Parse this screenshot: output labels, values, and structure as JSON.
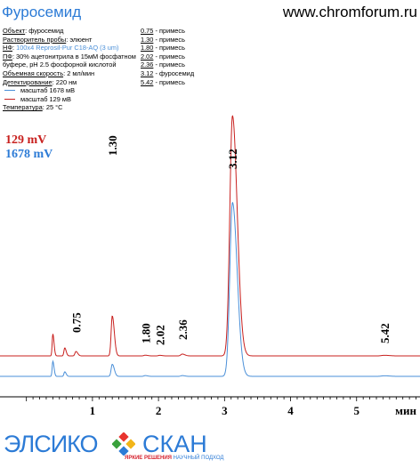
{
  "header": {
    "title": "Фуросемид",
    "site": "www.chromforum.ru"
  },
  "conditions": [
    {
      "key": "Объект",
      "value": "фуросемид",
      "blue": false
    },
    {
      "key": "Растворитель пробы",
      "value": "элюент",
      "blue": false
    },
    {
      "key": "НФ",
      "value": "100х4 Reprosil-Pur C18-AQ  (3 um)",
      "blue": true
    },
    {
      "key": "ПФ",
      "value": "30% ацетонитрила в 15мМ фосфатном",
      "blue": false
    },
    {
      "key": "",
      "value": "буфере, pH 2.5 фосфорной кислотой",
      "blue": false
    },
    {
      "key": "Объемная скорость",
      "value": "2 мл/мин",
      "blue": false
    },
    {
      "key": "Детектирование",
      "value": "220 нм",
      "blue": false
    }
  ],
  "legend": [
    {
      "label": "масштаб 1678 мВ",
      "color": "#4a8fd8"
    },
    {
      "label": "масштаб 129 мВ",
      "color": "#c8201e"
    }
  ],
  "temperature": {
    "key": "Температура",
    "value": "25 °C"
  },
  "peak_table": [
    {
      "time": "0.75",
      "name": "примесь"
    },
    {
      "time": "1.30",
      "name": "примесь"
    },
    {
      "time": "1.80",
      "name": "примесь"
    },
    {
      "time": "2.02",
      "name": "примесь"
    },
    {
      "time": "2.36",
      "name": "примесь"
    },
    {
      "time": "3.12",
      "name": "фуросемид"
    },
    {
      "time": "5.42",
      "name": "примесь"
    }
  ],
  "scales": {
    "red": "129 mV",
    "blue": "1678 mV"
  },
  "logos": {
    "left": "ЭЛСИКО",
    "right": "СКАН",
    "slogan_a": "ЯРКИЕ РЕШЕНИЯ",
    "slogan_b": "НАУЧНЫЙ ПОДХОД"
  },
  "chart_data": {
    "type": "line",
    "xlabel": "мин",
    "xlim": [
      -0.4,
      5.96
    ],
    "xticks": [
      1,
      2,
      3,
      4,
      5
    ],
    "peak_labels": [
      "0.75",
      "1.30",
      "1.80",
      "2.02",
      "2.36",
      "3.12",
      "5.42"
    ],
    "series": [
      {
        "name": "масштаб 129 мВ",
        "color": "#c8201e",
        "baseline": 0,
        "peaks": [
          {
            "t": 0.4,
            "h": 0.55,
            "w": 0.01
          },
          {
            "t": 0.58,
            "h": 0.2,
            "w": 0.012
          },
          {
            "t": 0.75,
            "h": 0.11,
            "w": 0.015
          },
          {
            "t": 1.3,
            "h": 1.0,
            "w": 0.017
          },
          {
            "t": 1.8,
            "h": 0.018,
            "w": 0.02
          },
          {
            "t": 2.02,
            "h": 0.014,
            "w": 0.02
          },
          {
            "t": 2.36,
            "h": 0.045,
            "w": 0.022
          },
          {
            "t": 3.12,
            "h": 6.0,
            "w": 0.04
          },
          {
            "t": 5.42,
            "h": 0.015,
            "w": 0.04
          }
        ]
      },
      {
        "name": "масштаб 1678 мВ",
        "color": "#4a8fd8",
        "baseline": 0,
        "peaks": [
          {
            "t": 0.4,
            "h": 0.1,
            "w": 0.01
          },
          {
            "t": 0.58,
            "h": 0.03,
            "w": 0.012
          },
          {
            "t": 1.3,
            "h": 0.08,
            "w": 0.017
          },
          {
            "t": 1.8,
            "h": 0.005,
            "w": 0.02
          },
          {
            "t": 2.36,
            "h": 0.005,
            "w": 0.022
          },
          {
            "t": 3.12,
            "h": 1.15,
            "w": 0.04
          },
          {
            "t": 5.42,
            "h": 0.004,
            "w": 0.04
          }
        ]
      }
    ]
  }
}
